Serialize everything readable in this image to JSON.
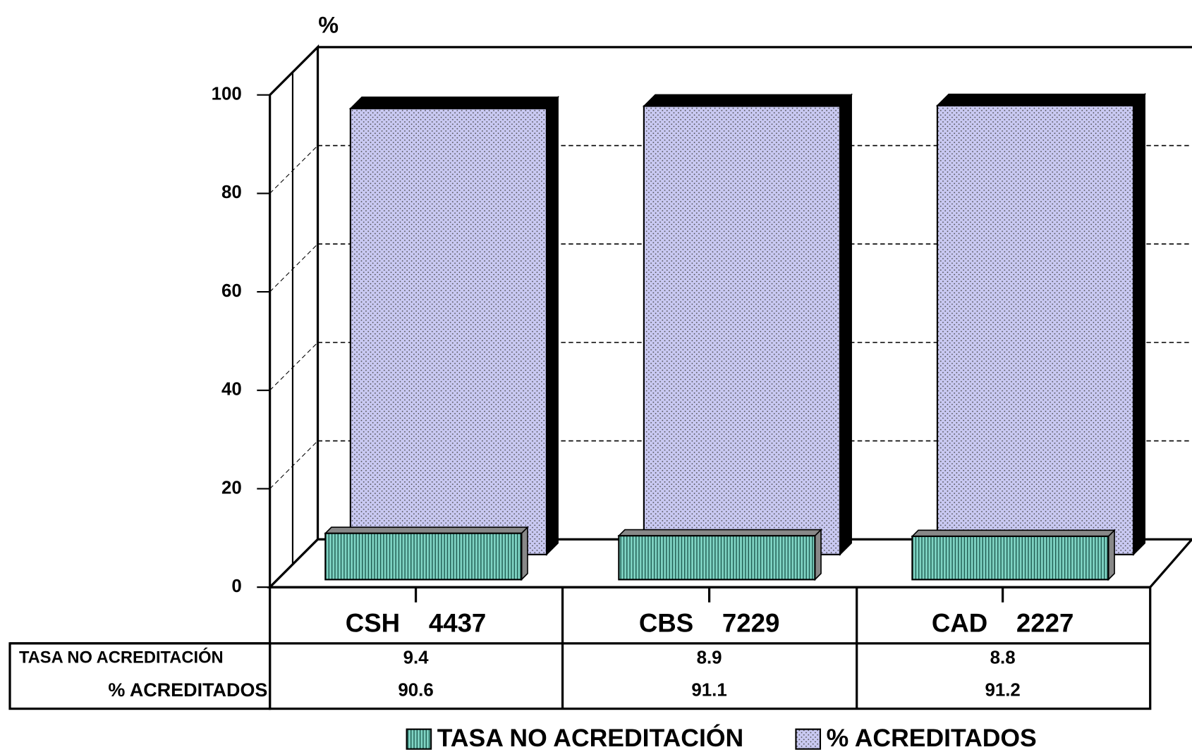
{
  "chart_data": {
    "type": "bar3d",
    "y_label": "%",
    "categories": [
      "CSH    4437",
      "CBS    7229",
      "CAD    2227"
    ],
    "series": [
      {
        "name": "TASA NO ACREDITACIÓN",
        "color": "#7fd3c3",
        "values": [
          9.4,
          8.9,
          8.8
        ]
      },
      {
        "name": "% ACREDITADOS",
        "color": "#c9c9f2",
        "values": [
          90.6,
          91.1,
          91.2
        ]
      }
    ],
    "ylim": [
      0,
      100
    ],
    "yticks": [
      0,
      20,
      40,
      60,
      80,
      100
    ],
    "grid": true,
    "legend": "bottom"
  }
}
